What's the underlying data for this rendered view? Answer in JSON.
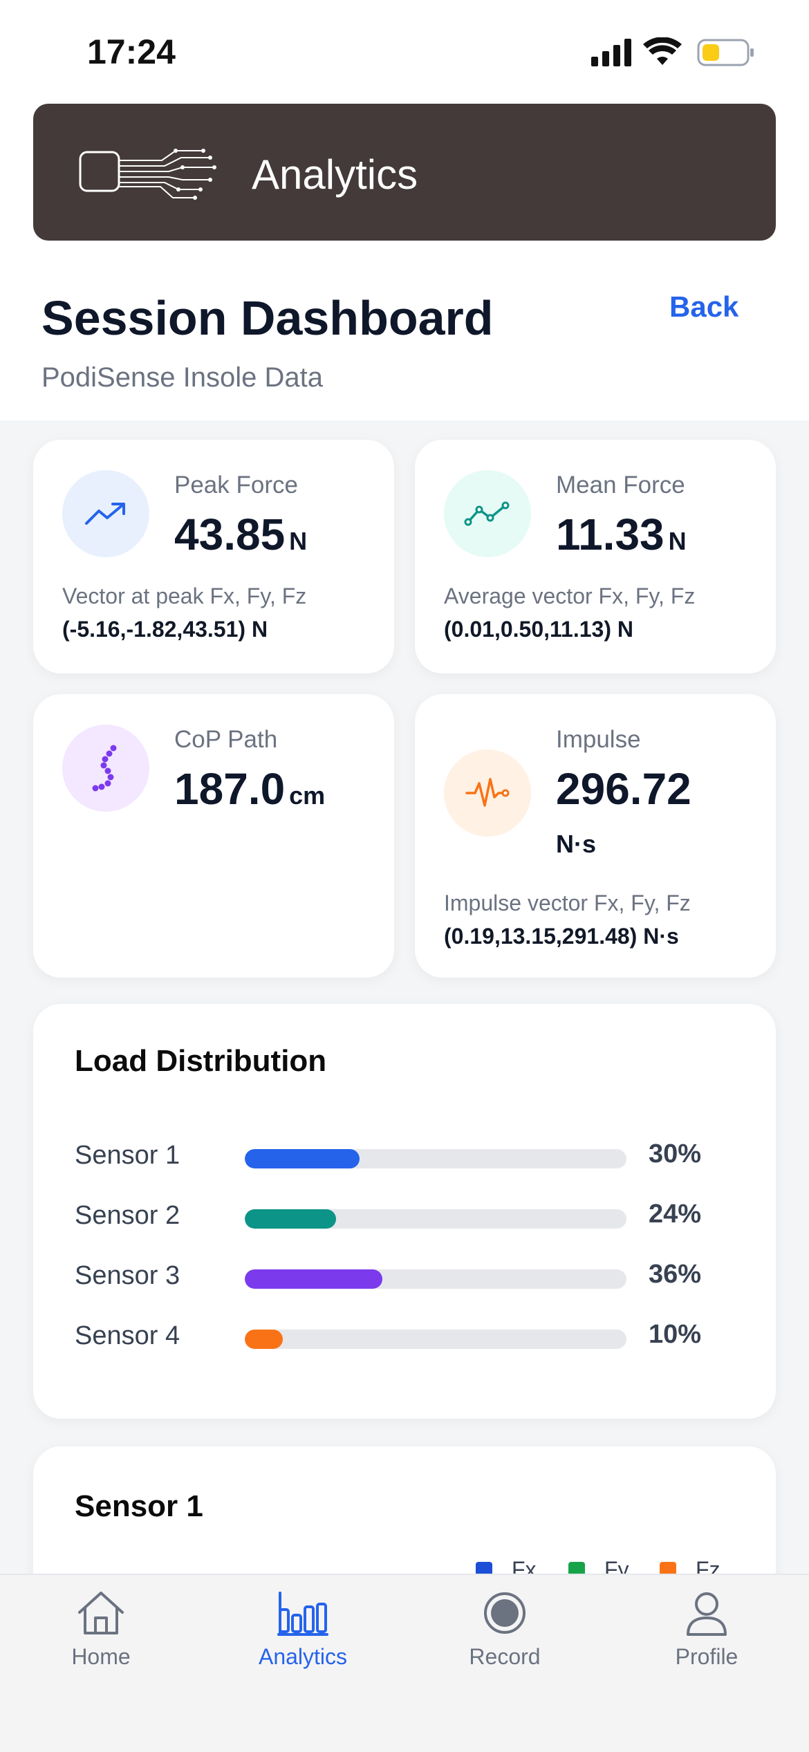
{
  "status_bar": {
    "time": "17:24"
  },
  "header": {
    "title": "Analytics"
  },
  "page": {
    "title": "Session Dashboard",
    "subtitle": "PodiSense Insole Data",
    "back_label": "Back"
  },
  "metrics": {
    "peak_force": {
      "label": "Peak Force",
      "value": "43.85",
      "unit": "N",
      "vector_label": "Vector at peak Fx, Fy, Fz",
      "vector_value": "(-5.16,-1.82,43.51) N",
      "icon": "trending-up-icon",
      "color": "#2563eb"
    },
    "mean_force": {
      "label": "Mean Force",
      "value": "11.33",
      "unit": "N",
      "vector_label": "Average vector Fx, Fy, Fz",
      "vector_value": "(0.01,0.50,11.13) N",
      "icon": "line-chart-icon",
      "color": "#0d9488"
    },
    "cop_path": {
      "label": "CoP Path",
      "value": "187.0",
      "unit": "cm",
      "icon": "path-dots-icon",
      "color": "#7c3aed"
    },
    "impulse": {
      "label": "Impulse",
      "value": "296.72",
      "unit": "N·s",
      "vector_label": "Impulse vector Fx, Fy, Fz",
      "vector_value": "(0.19,13.15,291.48) N·s",
      "icon": "pulse-icon",
      "color": "#f97316"
    }
  },
  "load_distribution": {
    "title": "Load Distribution",
    "sensors": [
      {
        "name": "Sensor 1",
        "percent": 30,
        "label": "30%",
        "color": "#2563eb"
      },
      {
        "name": "Sensor 2",
        "percent": 24,
        "label": "24%",
        "color": "#0d9488"
      },
      {
        "name": "Sensor 3",
        "percent": 36,
        "label": "36%",
        "color": "#7c3aed"
      },
      {
        "name": "Sensor 4",
        "percent": 10,
        "label": "10%",
        "color": "#f97316"
      }
    ]
  },
  "sensor_card": {
    "title": "Sensor 1",
    "legend": [
      {
        "name": "Fx",
        "color": "#1d4ed8"
      },
      {
        "name": "Fy",
        "color": "#16a34a"
      },
      {
        "name": "Fz",
        "color": "#f97316"
      }
    ]
  },
  "tabbar": {
    "items": [
      {
        "label": "Home",
        "icon": "home-icon",
        "active": false
      },
      {
        "label": "Analytics",
        "icon": "bar-chart-icon",
        "active": true
      },
      {
        "label": "Record",
        "icon": "record-icon",
        "active": false
      },
      {
        "label": "Profile",
        "icon": "profile-icon",
        "active": false
      }
    ]
  }
}
